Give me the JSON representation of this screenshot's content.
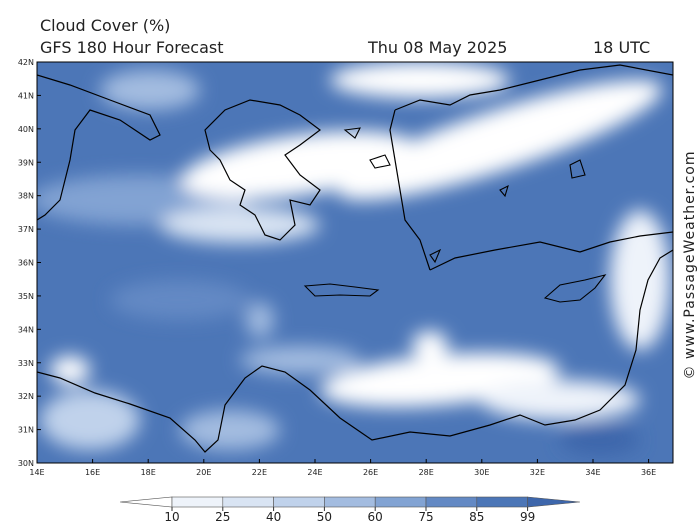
{
  "header": {
    "title": "Cloud Cover (%)",
    "model": "GFS 180 Hour Forecast",
    "date": "Thu 08 May 2025",
    "time": "18 UTC"
  },
  "map": {
    "lat_labels": [
      "42N",
      "41N",
      "40N",
      "39N",
      "38N",
      "37N",
      "36N",
      "35N",
      "34N",
      "33N",
      "32N",
      "31N",
      "30N"
    ],
    "lon_labels": [
      "14E",
      "16E",
      "18E",
      "20E",
      "22E",
      "24E",
      "26E",
      "28E",
      "30E",
      "32E",
      "34E",
      "36E"
    ]
  },
  "colorbar": {
    "levels": [
      10,
      25,
      40,
      50,
      60,
      75,
      85,
      99
    ],
    "colors": [
      "#ffffff",
      "#eef3fa",
      "#d9e4f3",
      "#c0d2eb",
      "#a3bce0",
      "#82a3d3",
      "#6389c4",
      "#4c76b7",
      "#3d66ab"
    ]
  },
  "watermark": "© www.PassageWeather.com"
}
